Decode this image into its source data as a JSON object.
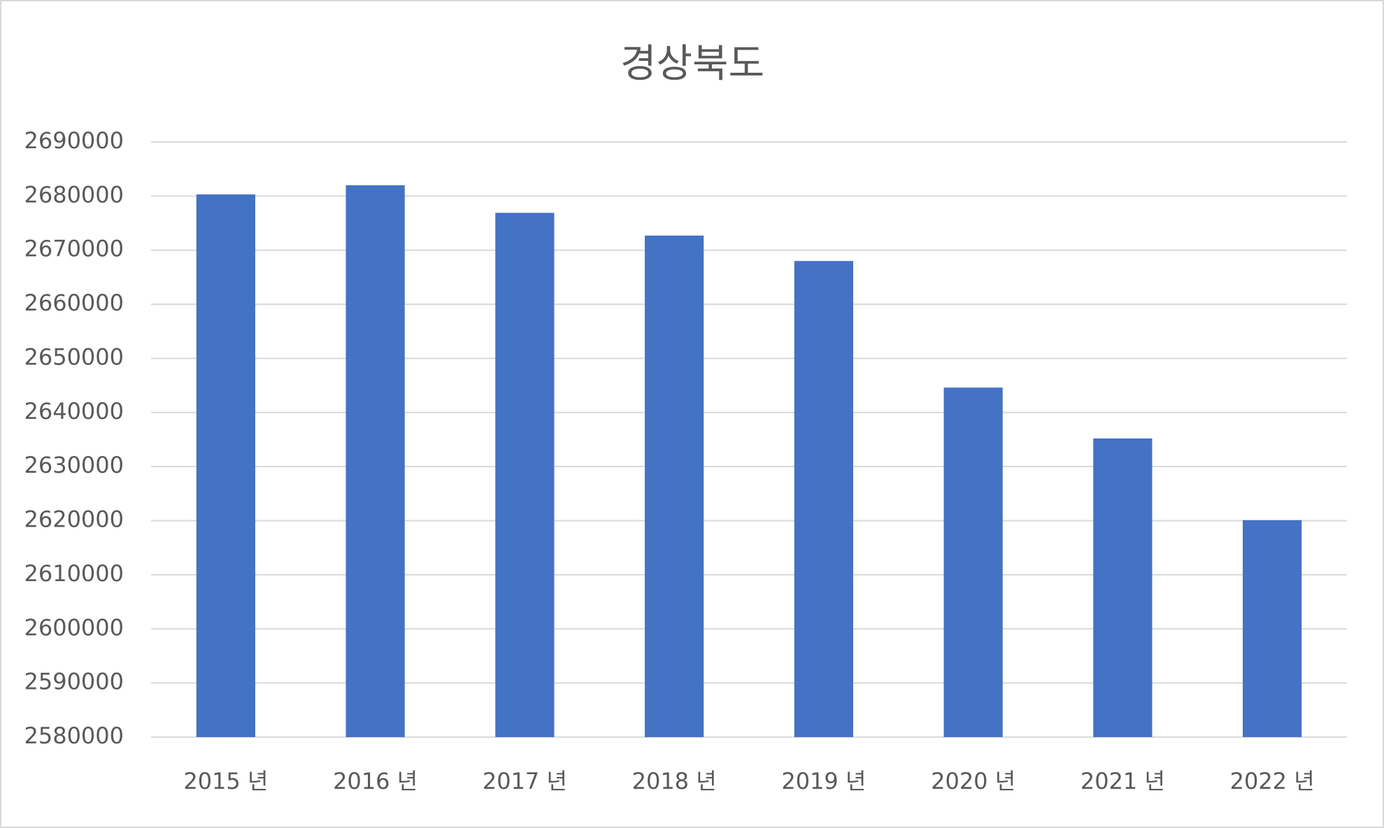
{
  "chart_data": {
    "type": "bar",
    "title": "경상북도",
    "categories": [
      "2015 년",
      "2016 년",
      "2017 년",
      "2018 년",
      "2019 년",
      "2020 년",
      "2021 년",
      "2022 년"
    ],
    "values": [
      2680300,
      2682000,
      2676900,
      2672700,
      2668000,
      2644600,
      2635200,
      2620100
    ],
    "color": "#4472c4",
    "ylim": [
      2580000,
      2690000
    ],
    "yticks": [
      2580000,
      2590000,
      2600000,
      2610000,
      2620000,
      2630000,
      2640000,
      2650000,
      2660000,
      2670000,
      2680000,
      2690000
    ],
    "grid": true
  }
}
